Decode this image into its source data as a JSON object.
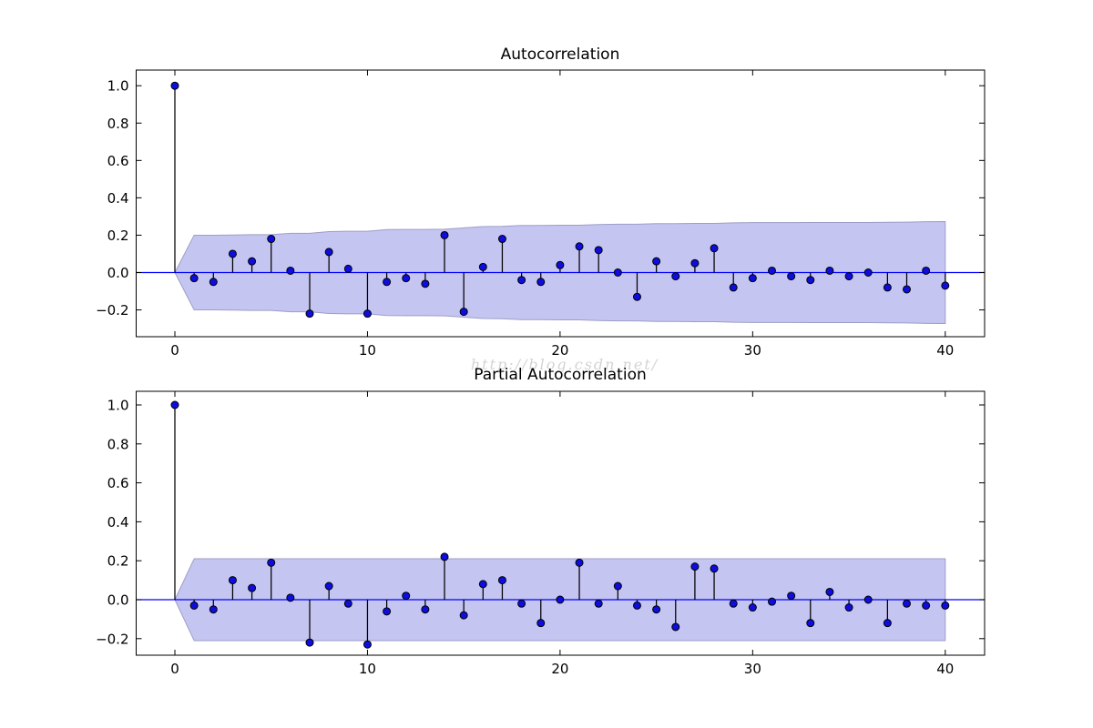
{
  "figure": {
    "background": "#ffffff"
  },
  "watermark": {
    "text": "http://blog.csdn.net/"
  },
  "colors": {
    "marker_fill": "#0d0dde",
    "marker_edge": "#000000",
    "stem": "#000000",
    "zero_line": "#0000ff",
    "band_fill": "#c5c5f2",
    "band_edge": "#9d9dc7",
    "spine": "#000000",
    "tick_label": "#000000"
  },
  "chart_data": [
    {
      "type": "stem",
      "title": "Autocorrelation",
      "lag_start": 0,
      "values": [
        1.0,
        -0.03,
        -0.05,
        0.1,
        0.06,
        0.18,
        0.01,
        -0.22,
        0.11,
        0.02,
        -0.22,
        -0.05,
        -0.03,
        -0.06,
        0.2,
        -0.21,
        0.03,
        0.18,
        -0.04,
        -0.05,
        0.04,
        0.14,
        0.12,
        0.0,
        -0.13,
        0.06,
        -0.02,
        0.05,
        0.13,
        -0.08,
        -0.03,
        0.01,
        -0.02,
        -0.04,
        0.01,
        -0.02,
        0.0,
        -0.08,
        -0.09,
        0.01,
        -0.07
      ],
      "conf_band_symmetric": true,
      "conf_upper": [
        0.2,
        0.2,
        0.201,
        0.203,
        0.203,
        0.21,
        0.21,
        0.219,
        0.221,
        0.221,
        0.23,
        0.231,
        0.231,
        0.232,
        0.239,
        0.246,
        0.247,
        0.252,
        0.252,
        0.253,
        0.253,
        0.257,
        0.259,
        0.259,
        0.262,
        0.262,
        0.263,
        0.263,
        0.266,
        0.267,
        0.267,
        0.267,
        0.268,
        0.268,
        0.268,
        0.268,
        0.269,
        0.27,
        0.272,
        0.273
      ],
      "xticks": [
        0,
        10,
        20,
        30,
        40
      ],
      "xtick_labels": [
        "0",
        "10",
        "20",
        "30",
        "40"
      ],
      "yticks": [
        1.0,
        0.8,
        0.6,
        0.4,
        0.2,
        0.0,
        -0.2
      ],
      "ytick_labels": [
        "1.0",
        "0.8",
        "0.6",
        "0.4",
        "0.2",
        "0.0",
        "−0.2"
      ],
      "xlim": [
        -2,
        42
      ],
      "ylim": [
        -0.343,
        1.084
      ],
      "grid": false,
      "legend": null
    },
    {
      "type": "stem",
      "title": "Partial Autocorrelation",
      "lag_start": 0,
      "values": [
        1.0,
        -0.03,
        -0.05,
        0.1,
        0.06,
        0.19,
        0.01,
        -0.22,
        0.07,
        -0.02,
        -0.23,
        -0.06,
        0.02,
        -0.05,
        0.22,
        -0.08,
        0.08,
        0.1,
        -0.02,
        -0.12,
        0.0,
        0.19,
        -0.02,
        0.07,
        -0.03,
        -0.05,
        -0.14,
        0.17,
        0.16,
        -0.02,
        -0.04,
        -0.01,
        0.02,
        -0.12,
        0.04,
        -0.04,
        0.0,
        -0.12,
        -0.02,
        -0.03,
        -0.03
      ],
      "conf_band_symmetric": true,
      "conf_upper": [
        0.21,
        0.21,
        0.21,
        0.21,
        0.21,
        0.21,
        0.21,
        0.21,
        0.21,
        0.21,
        0.21,
        0.21,
        0.21,
        0.21,
        0.21,
        0.21,
        0.21,
        0.21,
        0.21,
        0.21,
        0.21,
        0.21,
        0.21,
        0.21,
        0.21,
        0.21,
        0.21,
        0.21,
        0.21,
        0.21,
        0.21,
        0.21,
        0.21,
        0.21,
        0.21,
        0.21,
        0.21,
        0.21,
        0.21,
        0.21
      ],
      "xticks": [
        0,
        10,
        20,
        30,
        40
      ],
      "xtick_labels": [
        "0",
        "10",
        "20",
        "30",
        "40"
      ],
      "yticks": [
        1.0,
        0.8,
        0.6,
        0.4,
        0.2,
        0.0,
        -0.2
      ],
      "ytick_labels": [
        "1.0",
        "0.8",
        "0.6",
        "0.4",
        "0.2",
        "0.0",
        "−0.2"
      ],
      "xlim": [
        -2,
        42
      ],
      "ylim": [
        -0.285,
        1.07
      ],
      "grid": false,
      "legend": null
    }
  ]
}
